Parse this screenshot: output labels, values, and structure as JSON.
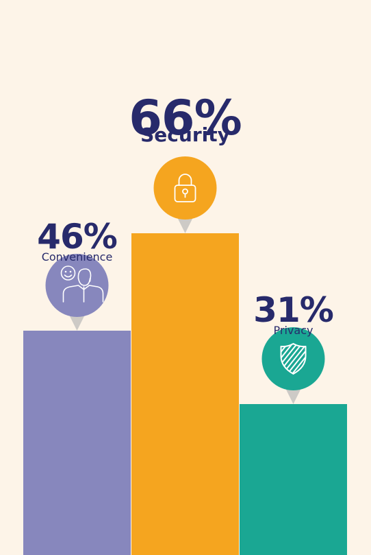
{
  "chart_data": {
    "type": "bar",
    "categories": [
      "Convenience",
      "Security",
      "Privacy"
    ],
    "values": [
      46,
      66,
      31
    ],
    "value_labels": [
      "46%",
      "66%",
      "31%"
    ],
    "colors": [
      "#8787bd",
      "#f5a51f",
      "#1aa793"
    ],
    "icons": [
      "person-smile-icon",
      "padlock-icon",
      "shield-icon"
    ],
    "label_color": "#272a6b",
    "pin_color": "#cdcac6",
    "background": "#fdf4e8",
    "ylim": [
      0,
      100
    ],
    "grid": false,
    "legend": "none"
  }
}
